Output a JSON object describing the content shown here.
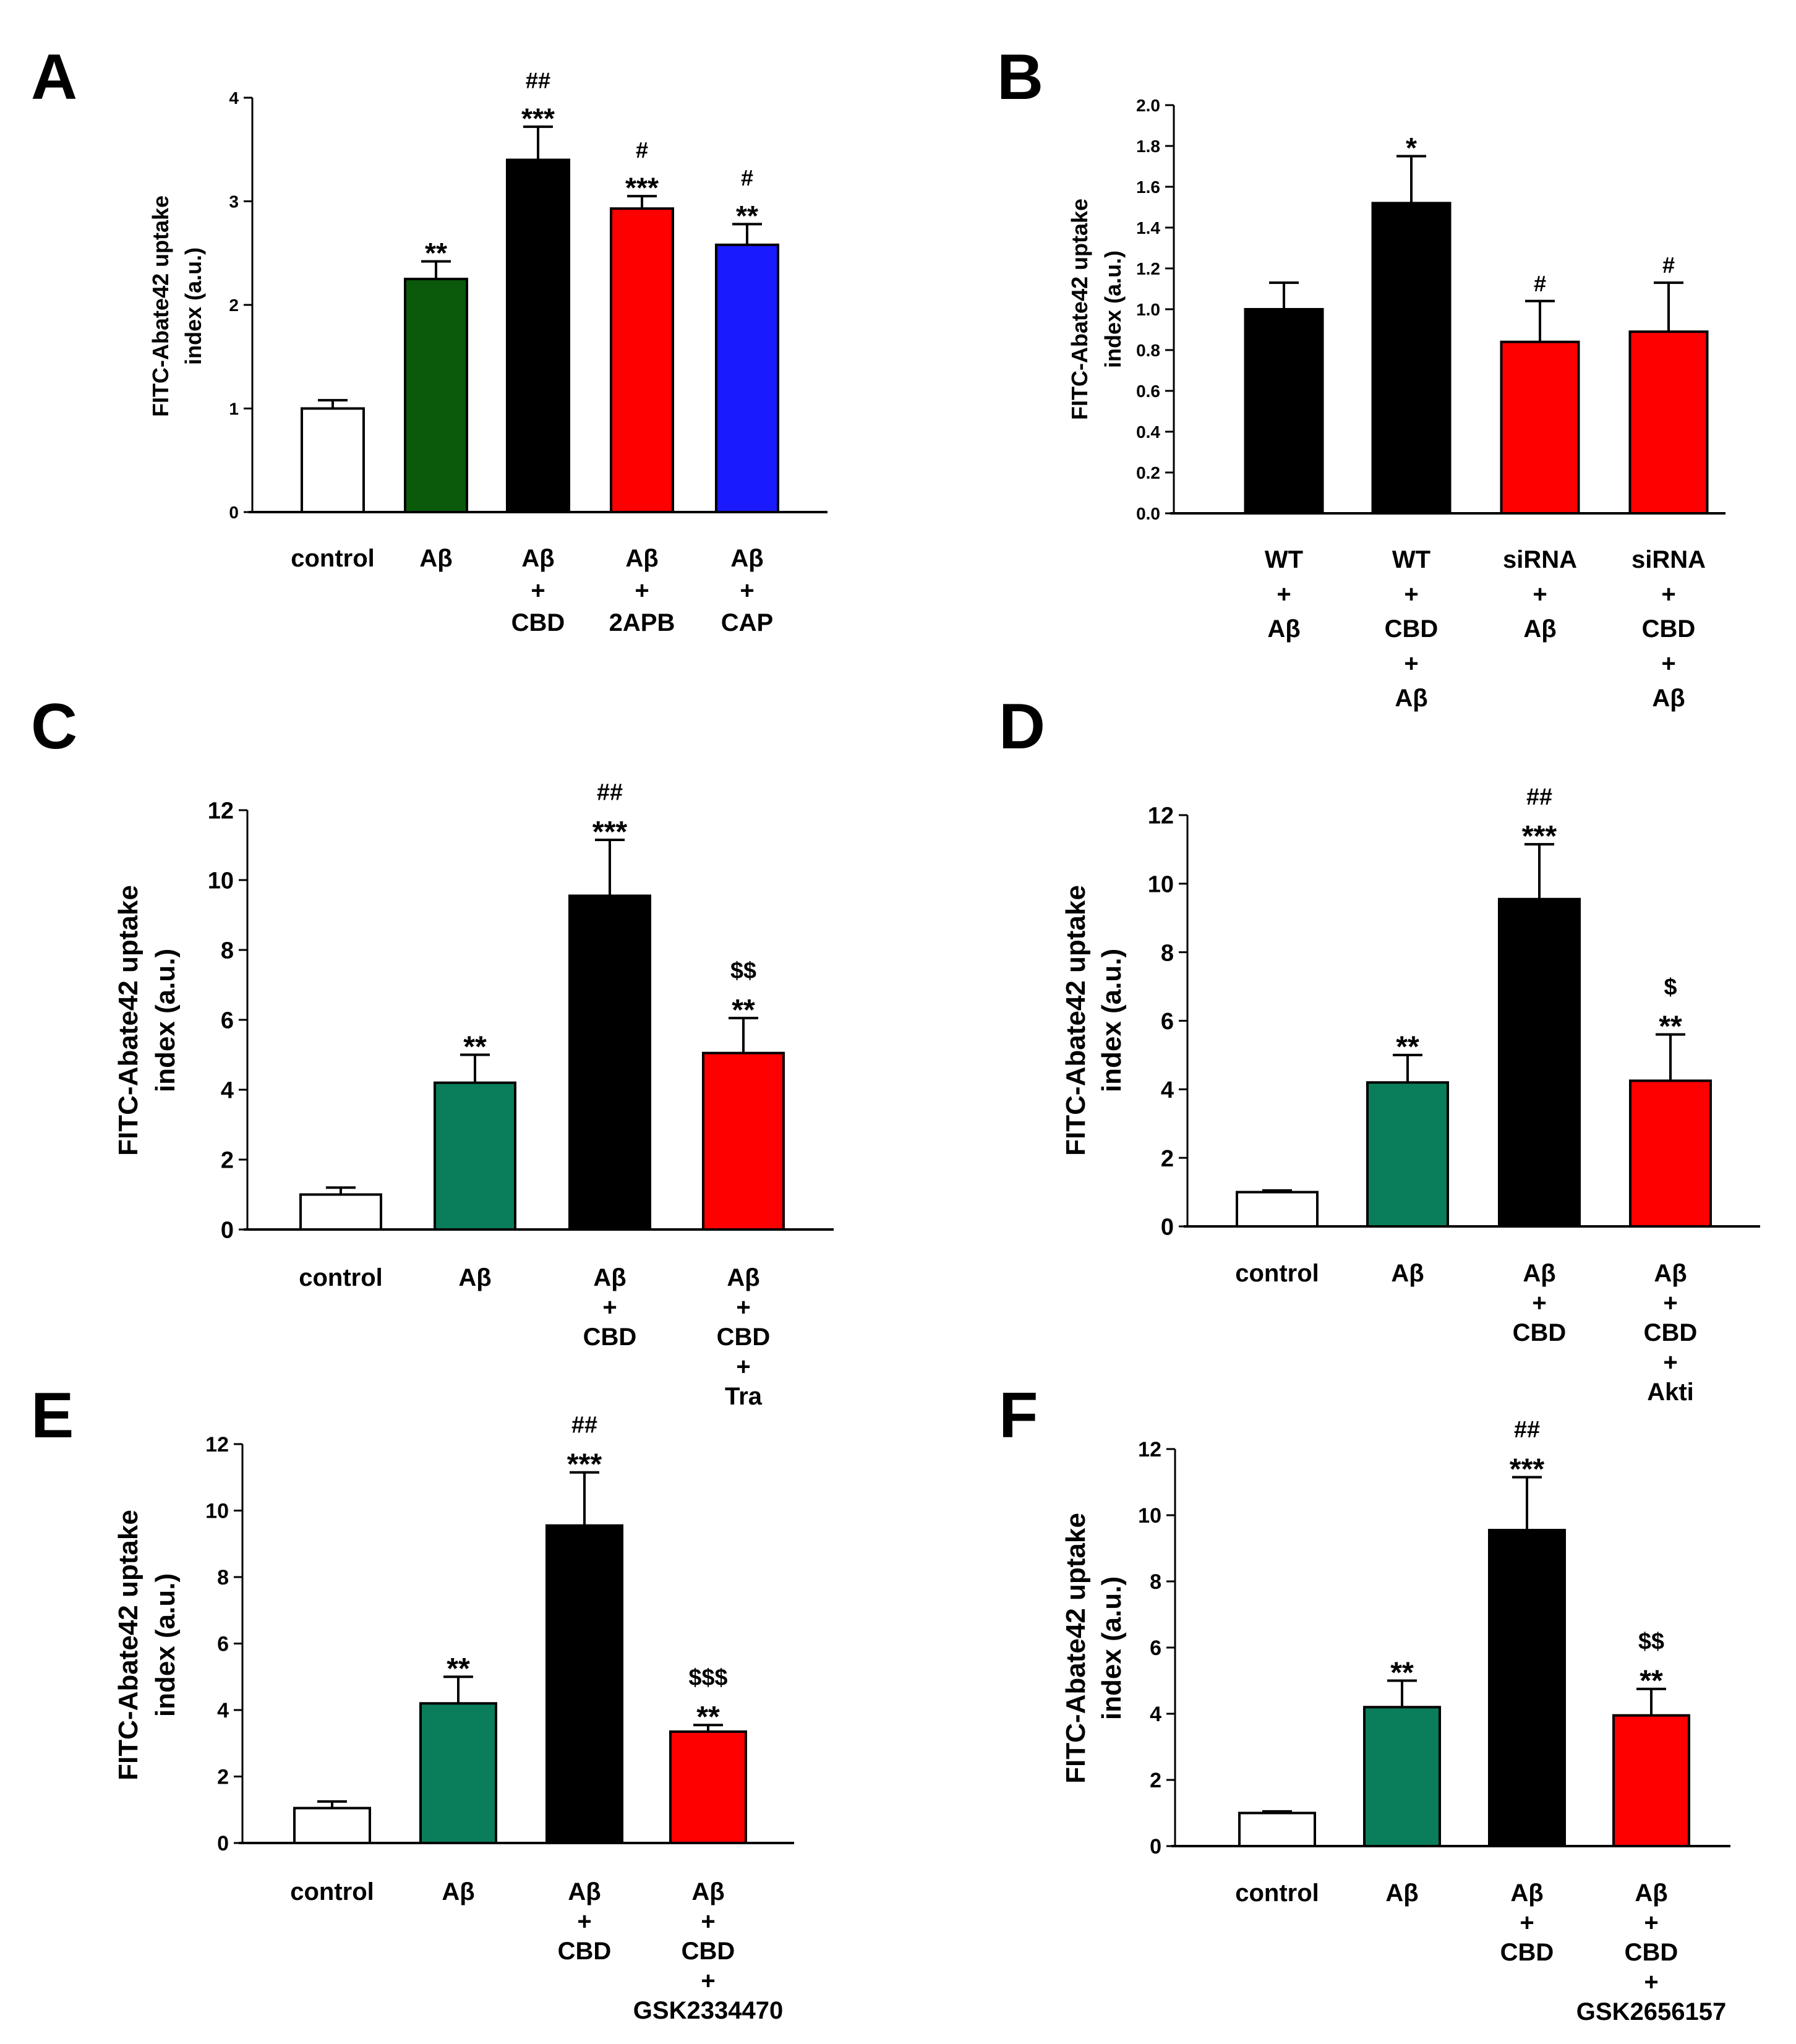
{
  "colors": {
    "white": "#ffffff",
    "dark_green": "#0b5a0b",
    "teal_green": "#0a7d5b",
    "black": "#000000",
    "red": "#ff0000",
    "blue": "#1a1aff"
  },
  "chart_data": [
    {
      "panel": "A",
      "type": "bar",
      "ylabel": [
        "FITC-Abate42 uptake",
        "index (a.u.)"
      ],
      "ylim": [
        0,
        4
      ],
      "yticks": [
        0,
        1,
        2,
        3,
        4
      ],
      "tick_decimals": 0,
      "categories": [
        [
          "control"
        ],
        [
          "Aβ"
        ],
        [
          "Aβ",
          "+",
          "CBD"
        ],
        [
          "Aβ",
          "+",
          "2APB"
        ],
        [
          "Aβ",
          "+",
          "CAP"
        ]
      ],
      "values": [
        1.0,
        2.25,
        3.4,
        2.93,
        2.58
      ],
      "errors": [
        0.08,
        0.17,
        0.32,
        0.12,
        0.2
      ],
      "colors": [
        "white",
        "dark_green",
        "black",
        "red",
        "blue"
      ],
      "annotations": [
        [],
        [
          "**"
        ],
        [
          "##",
          "***"
        ],
        [
          "#",
          "***"
        ],
        [
          "#",
          "**"
        ]
      ]
    },
    {
      "panel": "B",
      "type": "bar",
      "ylabel": [
        "FITC-Abate42 uptake",
        "index (a.u.)"
      ],
      "ylim": [
        0,
        2
      ],
      "yticks": [
        0,
        0.2,
        0.4,
        0.6,
        0.8,
        1.0,
        1.2,
        1.4,
        1.6,
        1.8,
        2.0
      ],
      "tick_decimals": 1,
      "categories": [
        [
          "WT",
          "+",
          "Aβ"
        ],
        [
          "WT",
          "+",
          "CBD",
          "+",
          "Aβ"
        ],
        [
          "siRNA",
          "+",
          "Aβ"
        ],
        [
          "siRNA",
          "+",
          "CBD",
          "+",
          "Aβ"
        ]
      ],
      "values": [
        1.0,
        1.52,
        0.84,
        0.89
      ],
      "errors": [
        0.13,
        0.23,
        0.2,
        0.24
      ],
      "colors": [
        "black",
        "black",
        "red",
        "red"
      ],
      "annotations": [
        [],
        [
          "*"
        ],
        [
          "#"
        ],
        [
          "#"
        ]
      ]
    },
    {
      "panel": "C",
      "type": "bar",
      "ylabel": [
        "FITC-Abate42 uptake",
        "index (a.u.)"
      ],
      "ylim": [
        0,
        12
      ],
      "yticks": [
        0,
        2,
        4,
        6,
        8,
        10,
        12
      ],
      "tick_decimals": 0,
      "categories": [
        [
          "control"
        ],
        [
          "Aβ"
        ],
        [
          "Aβ",
          "+",
          "CBD"
        ],
        [
          "Aβ",
          "+",
          "CBD",
          "+",
          "Tra"
        ]
      ],
      "values": [
        1.0,
        4.2,
        9.55,
        5.05
      ],
      "errors": [
        0.2,
        0.8,
        1.6,
        1.0
      ],
      "colors": [
        "white",
        "teal_green",
        "black",
        "red"
      ],
      "annotations": [
        [],
        [
          "**"
        ],
        [
          "##",
          "***"
        ],
        [
          "$$",
          "**"
        ]
      ]
    },
    {
      "panel": "D",
      "type": "bar",
      "ylabel": [
        "FITC-Abate42 uptake",
        "index (a.u.)"
      ],
      "ylim": [
        0,
        12
      ],
      "yticks": [
        0,
        2,
        4,
        6,
        8,
        10,
        12
      ],
      "tick_decimals": 0,
      "categories": [
        [
          "control"
        ],
        [
          "Aβ"
        ],
        [
          "Aβ",
          "+",
          "CBD"
        ],
        [
          "Aβ",
          "+",
          "CBD",
          "+",
          "Akti"
        ]
      ],
      "values": [
        1.0,
        4.2,
        9.55,
        4.25
      ],
      "errors": [
        0.05,
        0.8,
        1.6,
        1.35
      ],
      "colors": [
        "white",
        "teal_green",
        "black",
        "red"
      ],
      "annotations": [
        [],
        [
          "**"
        ],
        [
          "##",
          "***"
        ],
        [
          "$",
          "**"
        ]
      ]
    },
    {
      "panel": "E",
      "type": "bar",
      "ylabel": [
        "FITC-Abate42 uptake",
        "index (a.u.)"
      ],
      "ylim": [
        0,
        12
      ],
      "yticks": [
        0,
        2,
        4,
        6,
        8,
        10,
        12
      ],
      "tick_decimals": 0,
      "categories": [
        [
          "control"
        ],
        [
          "Aβ"
        ],
        [
          "Aβ",
          "+",
          "CBD"
        ],
        [
          "Aβ",
          "+",
          "CBD",
          "+",
          "GSK2334470"
        ]
      ],
      "values": [
        1.05,
        4.2,
        9.55,
        3.35
      ],
      "errors": [
        0.2,
        0.8,
        1.6,
        0.2
      ],
      "colors": [
        "white",
        "teal_green",
        "black",
        "red"
      ],
      "annotations": [
        [],
        [
          "**"
        ],
        [
          "##",
          "***"
        ],
        [
          "$$$",
          "**"
        ]
      ]
    },
    {
      "panel": "F",
      "type": "bar",
      "ylabel": [
        "FITC-Abate42 uptake",
        "index (a.u.)"
      ],
      "ylim": [
        0,
        12
      ],
      "yticks": [
        0,
        2,
        4,
        6,
        8,
        10,
        12
      ],
      "tick_decimals": 0,
      "categories": [
        [
          "control"
        ],
        [
          "Aβ"
        ],
        [
          "Aβ",
          "+",
          "CBD"
        ],
        [
          "Aβ",
          "+",
          "CBD",
          "+",
          "GSK2656157"
        ]
      ],
      "values": [
        1.0,
        4.2,
        9.55,
        3.95
      ],
      "errors": [
        0.05,
        0.8,
        1.6,
        0.8
      ],
      "colors": [
        "white",
        "teal_green",
        "black",
        "red"
      ],
      "annotations": [
        [],
        [
          "**"
        ],
        [
          "##",
          "***"
        ],
        [
          "$$",
          "**"
        ]
      ]
    }
  ]
}
